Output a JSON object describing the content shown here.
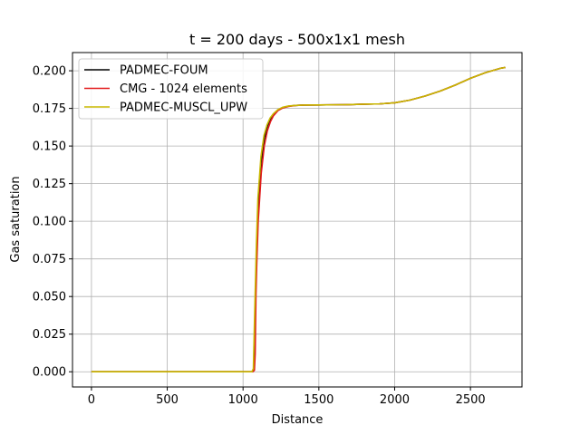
{
  "chart_data": {
    "type": "line",
    "title": "t = 200 days - 500x1x1 mesh",
    "xlabel": "Distance",
    "ylabel": "Gas saturation",
    "xlim": [
      -125,
      2840
    ],
    "ylim": [
      -0.0101,
      0.2121
    ],
    "xticks": [
      0,
      500,
      1000,
      1500,
      2000,
      2500
    ],
    "yticks": [
      0.0,
      0.025,
      0.05,
      0.075,
      0.1,
      0.125,
      0.15,
      0.175,
      0.2
    ],
    "xtick_labels": [
      "0",
      "500",
      "1000",
      "1500",
      "2000",
      "2500"
    ],
    "ytick_labels": [
      "0.000",
      "0.025",
      "0.050",
      "0.075",
      "0.100",
      "0.125",
      "0.150",
      "0.175",
      "0.200"
    ],
    "grid": true,
    "legend_position": "upper-left",
    "series": [
      {
        "name": "PADMEC-FOUM",
        "color": "#000000",
        "x": [
          0,
          500,
          1000,
          1060,
          1070,
          1080,
          1090,
          1100,
          1120,
          1140,
          1160,
          1180,
          1200,
          1230,
          1260,
          1300,
          1350,
          1400,
          1500,
          1600,
          1700,
          1800,
          1900,
          2000,
          2100,
          2200,
          2300,
          2400,
          2500,
          2600,
          2700,
          2730
        ],
        "y": [
          0,
          0,
          0,
          0,
          0.001,
          0.04,
          0.08,
          0.11,
          0.14,
          0.155,
          0.163,
          0.168,
          0.171,
          0.174,
          0.1755,
          0.1765,
          0.177,
          0.1772,
          0.1773,
          0.1774,
          0.1775,
          0.1778,
          0.178,
          0.1787,
          0.1805,
          0.1832,
          0.1865,
          0.1905,
          0.195,
          0.1988,
          0.2017,
          0.2022
        ]
      },
      {
        "name": "CMG - 1024 elements",
        "color": "#e31a1c",
        "x": [
          0,
          500,
          1000,
          1065,
          1075,
          1080,
          1085,
          1090,
          1100,
          1120,
          1140,
          1160,
          1180,
          1200,
          1230,
          1260,
          1300,
          1350,
          1400,
          1500,
          1600,
          1700,
          1800,
          1900,
          2000,
          2100,
          2200,
          2300,
          2400,
          2500,
          2600,
          2700,
          2730
        ],
        "y": [
          0,
          0,
          0,
          0,
          0.001,
          0.012,
          0.05,
          0.07,
          0.1,
          0.132,
          0.15,
          0.16,
          0.166,
          0.17,
          0.1735,
          0.1752,
          0.1763,
          0.177,
          0.1772,
          0.1773,
          0.1774,
          0.1775,
          0.1778,
          0.178,
          0.1787,
          0.1805,
          0.1832,
          0.1865,
          0.1905,
          0.195,
          0.1988,
          0.2017,
          0.2022
        ]
      },
      {
        "name": "PADMEC-MUSCL_UPW",
        "color": "#c9b800",
        "x": [
          0,
          500,
          1000,
          1058,
          1068,
          1078,
          1088,
          1098,
          1118,
          1138,
          1158,
          1178,
          1200,
          1230,
          1260,
          1300,
          1350,
          1400,
          1500,
          1600,
          1700,
          1800,
          1900,
          2000,
          2100,
          2200,
          2300,
          2400,
          2500,
          2600,
          2700,
          2730
        ],
        "y": [
          0,
          0,
          0,
          0,
          0.002,
          0.045,
          0.085,
          0.115,
          0.143,
          0.157,
          0.164,
          0.1685,
          0.1715,
          0.1742,
          0.1757,
          0.1766,
          0.177,
          0.1772,
          0.1773,
          0.1774,
          0.1775,
          0.1778,
          0.178,
          0.1787,
          0.1805,
          0.1832,
          0.1865,
          0.1905,
          0.195,
          0.1988,
          0.2017,
          0.2022
        ]
      }
    ]
  }
}
